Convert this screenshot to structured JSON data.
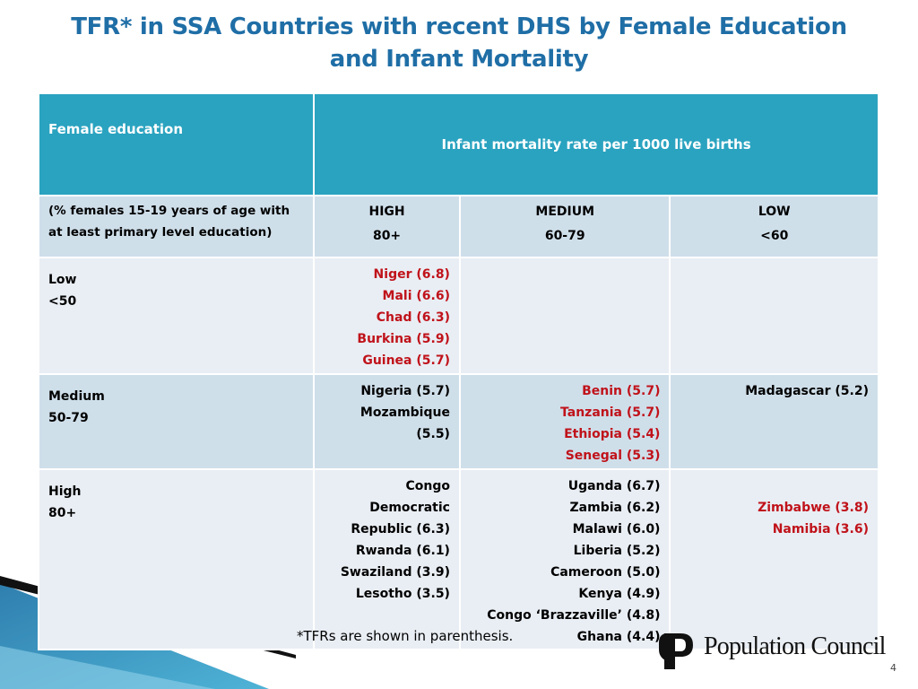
{
  "title": {
    "line1": "TFR* in  SSA Countries with recent DHS by Female  Education",
    "line2": "and Infant Mortality"
  },
  "table": {
    "header_left": "Female education",
    "header_right": "Infant mortality rate per 1000 live births",
    "subheader_left": "(% females 15-19 years of age with at least primary level education)",
    "columns": [
      {
        "label": "HIGH",
        "range": "80+"
      },
      {
        "label": "MEDIUM",
        "range": "60-79"
      },
      {
        "label": "LOW",
        "range": "<60"
      }
    ],
    "rows": [
      {
        "label": "Low",
        "range": "<50",
        "cells": [
          {
            "color": "#c0121a",
            "lines": [
              "Niger (6.8)",
              "Mali (6.6)",
              "Chad (6.3)",
              "Burkina (5.9)",
              "Guinea (5.7)"
            ]
          },
          {
            "color": "#000000",
            "lines": []
          },
          {
            "color": "#000000",
            "lines": []
          }
        ]
      },
      {
        "label": "Medium",
        "range": "50-79",
        "cells": [
          {
            "color": "#000000",
            "lines": [
              "Nigeria (5.7)",
              "Mozambique",
              "(5.5)"
            ]
          },
          {
            "color": "#c0121a",
            "lines": [
              "Benin (5.7)",
              "Tanzania (5.7)",
              "Ethiopia (5.4)",
              "Senegal (5.3)"
            ]
          },
          {
            "color": "#000000",
            "lines": [
              "Madagascar (5.2)"
            ]
          }
        ]
      },
      {
        "label": "High",
        "range": "80+",
        "cells": [
          {
            "color": "#000000",
            "lines": [
              "Congo",
              "Democratic",
              "Republic (6.3)",
              "Rwanda (6.1)",
              "Swaziland (3.9)",
              "Lesotho (3.5)"
            ]
          },
          {
            "color": "#000000",
            "lines": [
              "Uganda (6.7)",
              "Zambia (6.2)",
              "Malawi (6.0)",
              "Liberia (5.2)",
              "Cameroon (5.0)",
              "Kenya (4.9)",
              "Congo ‘Brazzaville’ (4.8)",
              "Ghana (4.4)"
            ]
          },
          {
            "color": "#c0121a",
            "lines": [
              "",
              "Zimbabwe (3.8)",
              "Namibia (3.6)"
            ]
          }
        ]
      }
    ]
  },
  "footnote": "*TFRs are shown in parenthesis.",
  "logo_text": "Population Council",
  "page_number": "4",
  "colors": {
    "title": "#1f6ea6",
    "header_bg": "#2aa3c0",
    "band_dark": "#cfdfea",
    "band_light": "#e9eef4",
    "highlight_text": "#c0121a"
  }
}
